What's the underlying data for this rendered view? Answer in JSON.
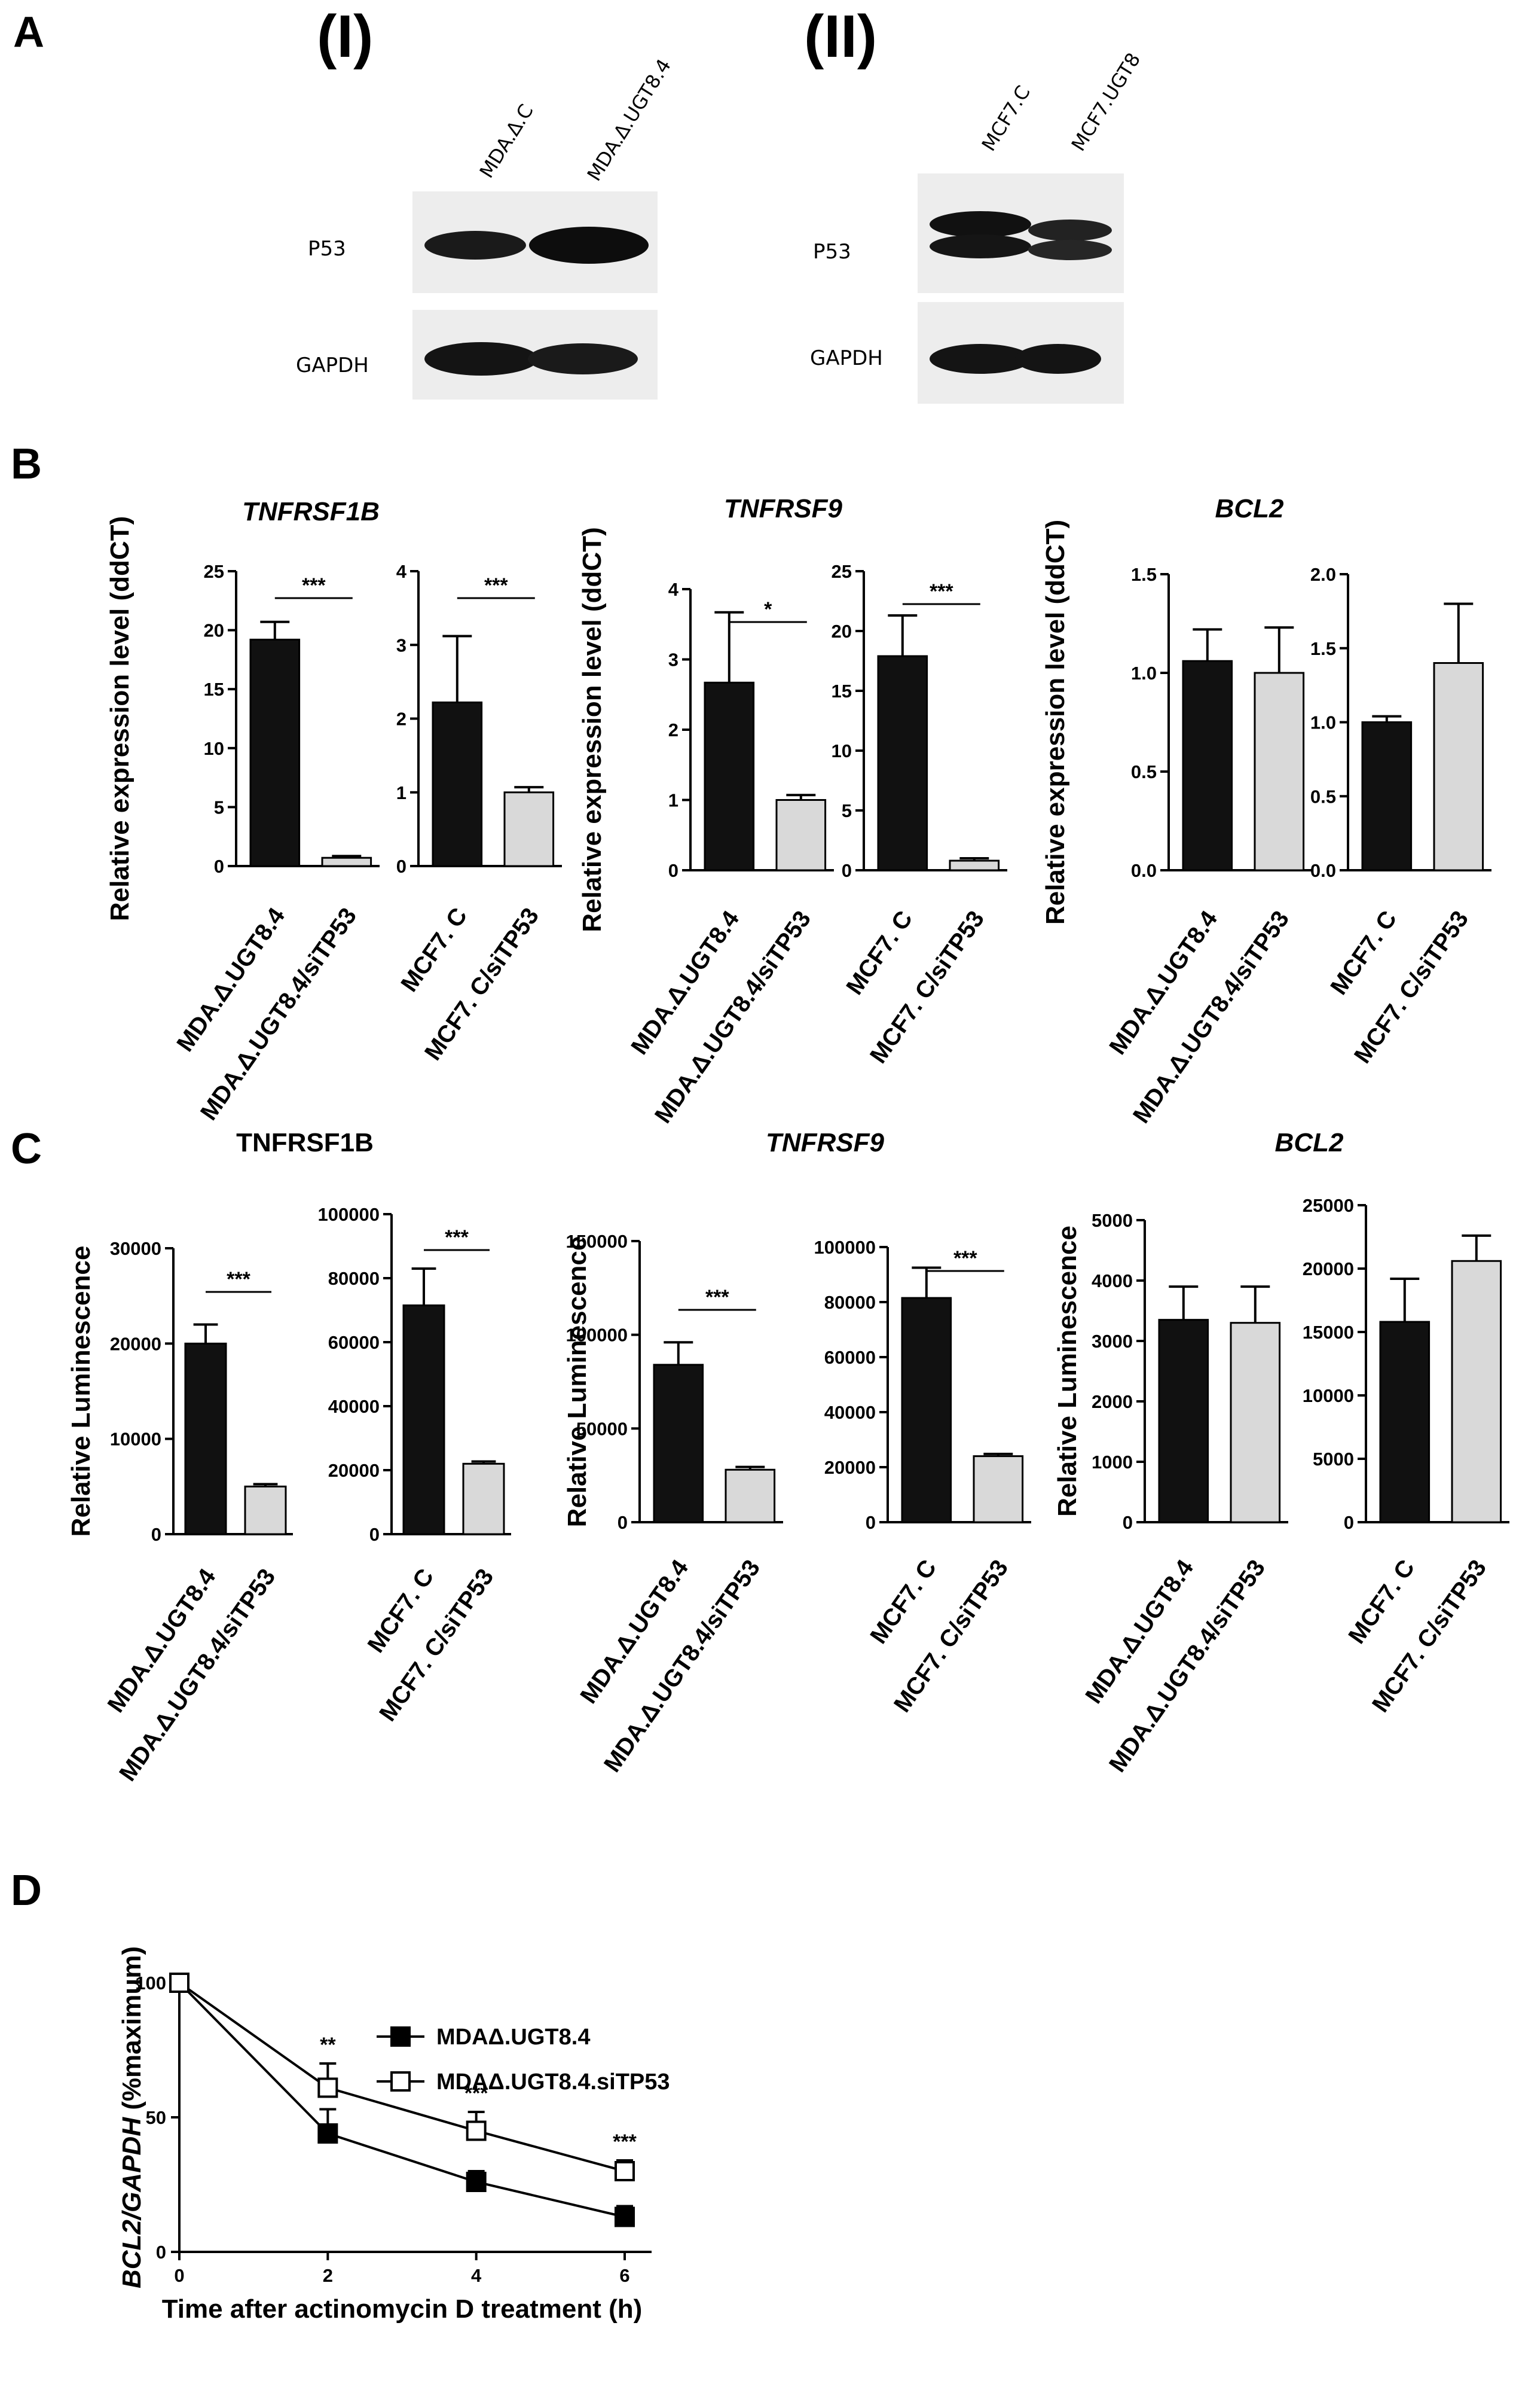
{
  "panel_letters": {
    "A": "A",
    "B": "B",
    "C": "C",
    "D": "D"
  },
  "blots": {
    "I": {
      "roman": "(I)",
      "lanes": [
        "MDA.Δ.C",
        "MDA.Δ.UGT8.4"
      ],
      "bands": [
        {
          "label": "P53",
          "intensity": [
            0.75,
            1.0
          ]
        },
        {
          "label": "GAPDH",
          "intensity": [
            0.9,
            0.85
          ]
        }
      ]
    },
    "II": {
      "roman": "(II)",
      "lanes": [
        "MCF7.C",
        "MCF7.UGT8"
      ],
      "bands": [
        {
          "label": "P53",
          "intensity": [
            1.0,
            0.85
          ]
        },
        {
          "label": "GAPDH",
          "intensity": [
            0.9,
            0.9
          ]
        }
      ]
    }
  },
  "chart_data": [
    {
      "id": "B1",
      "type": "bar",
      "title": "TNFRSF1B",
      "title_italic": true,
      "ylabel": "Relative expression level (ddCT)",
      "categories": [
        "MDA.Δ.UGT8.4",
        "MDA.Δ.UGT8.4/siTP53"
      ],
      "values": [
        19.2,
        0.7
      ],
      "errors": [
        1.5,
        0.15
      ],
      "ylim": [
        0,
        25
      ],
      "yticks": [
        0,
        5,
        10,
        15,
        20,
        25
      ],
      "colors": [
        "#111111",
        "#d9d9d9"
      ],
      "sig": "***"
    },
    {
      "id": "B2",
      "type": "bar",
      "title": "",
      "ylabel": "",
      "categories": [
        "MCF7. C",
        "MCF7. C/siTP53"
      ],
      "values": [
        2.22,
        1.0
      ],
      "errors": [
        0.9,
        0.07
      ],
      "ylim": [
        0,
        4
      ],
      "yticks": [
        0,
        1,
        2,
        3,
        4
      ],
      "colors": [
        "#111111",
        "#d9d9d9"
      ],
      "sig": "***"
    },
    {
      "id": "B3",
      "type": "bar",
      "title": "TNFRSF9",
      "title_italic": true,
      "ylabel": "Relative expression level (ddCT)",
      "categories": [
        "MDA.Δ.UGT8.4",
        "MDA.Δ.UGT8.4/siTP53"
      ],
      "values": [
        2.67,
        1.0
      ],
      "errors": [
        1.0,
        0.07
      ],
      "ylim": [
        0,
        4
      ],
      "yticks": [
        0,
        1,
        2,
        3,
        4
      ],
      "colors": [
        "#111111",
        "#d9d9d9"
      ],
      "sig": "*"
    },
    {
      "id": "B4",
      "type": "bar",
      "title": "",
      "ylabel": "",
      "categories": [
        "MCF7. C",
        "MCF7. C/siTP53"
      ],
      "values": [
        17.9,
        0.8
      ],
      "errors": [
        3.4,
        0.2
      ],
      "ylim": [
        0,
        25
      ],
      "yticks": [
        0,
        5,
        10,
        15,
        20,
        25
      ],
      "colors": [
        "#111111",
        "#d9d9d9"
      ],
      "sig": "***"
    },
    {
      "id": "B5",
      "type": "bar",
      "title": "BCL2",
      "title_italic": true,
      "ylabel": "Relative expression level (ddCT)",
      "categories": [
        "MDA.Δ.UGT8.4",
        "MDA.Δ.UGT8.4/siTP53"
      ],
      "values": [
        1.06,
        1.0
      ],
      "errors": [
        0.16,
        0.23
      ],
      "ylim": [
        0,
        1.5
      ],
      "yticks": [
        "0.0",
        "0.5",
        "1.0",
        "1.5"
      ],
      "colors": [
        "#111111",
        "#d9d9d9"
      ],
      "sig": ""
    },
    {
      "id": "B6",
      "type": "bar",
      "title": "",
      "ylabel": "",
      "categories": [
        "MCF7. C",
        "MCF7. C/siTP53"
      ],
      "values": [
        1.0,
        1.4
      ],
      "errors": [
        0.04,
        0.4
      ],
      "ylim": [
        0,
        2.0
      ],
      "yticks": [
        "0.0",
        "0.5",
        "1.0",
        "1.5",
        "2.0"
      ],
      "colors": [
        "#111111",
        "#d9d9d9"
      ],
      "sig": ""
    },
    {
      "id": "C1",
      "type": "bar",
      "title": "TNFRSF1B",
      "title_italic": false,
      "ylabel": "Relative Luminescence",
      "categories": [
        "MDA.Δ.UGT8.4",
        "MDA.Δ.UGT8.4/siTP53"
      ],
      "values": [
        20000,
        5000
      ],
      "errors": [
        2000,
        250
      ],
      "ylim": [
        0,
        30000
      ],
      "yticks": [
        0,
        10000,
        20000,
        30000
      ],
      "colors": [
        "#111111",
        "#d9d9d9"
      ],
      "sig": "***"
    },
    {
      "id": "C2",
      "type": "bar",
      "title": "",
      "ylabel": "",
      "categories": [
        "MCF7. C",
        "MCF7. C/siTP53"
      ],
      "values": [
        71500,
        22000
      ],
      "errors": [
        11500,
        700
      ],
      "ylim": [
        0,
        100000
      ],
      "yticks": [
        0,
        20000,
        40000,
        60000,
        80000,
        100000
      ],
      "colors": [
        "#111111",
        "#d9d9d9"
      ],
      "sig": "***"
    },
    {
      "id": "C3",
      "type": "bar",
      "title": "TNFRSF9",
      "title_italic": true,
      "ylabel": "Relative Luminescence",
      "categories": [
        "MDA.Δ.UGT8.4",
        "MDA.Δ.UGT8.4/siTP53"
      ],
      "values": [
        84000,
        28000
      ],
      "errors": [
        12000,
        1500
      ],
      "ylim": [
        0,
        150000
      ],
      "yticks": [
        0,
        50000,
        100000,
        150000
      ],
      "colors": [
        "#111111",
        "#d9d9d9"
      ],
      "sig": "***"
    },
    {
      "id": "C4",
      "type": "bar",
      "title": "",
      "ylabel": "",
      "categories": [
        "MCF7. C",
        "MCF7. C/siTP53"
      ],
      "values": [
        81500,
        24000
      ],
      "errors": [
        11000,
        800
      ],
      "ylim": [
        0,
        100000
      ],
      "yticks": [
        0,
        20000,
        40000,
        60000,
        80000,
        100000
      ],
      "colors": [
        "#111111",
        "#d9d9d9"
      ],
      "sig": "***"
    },
    {
      "id": "C5",
      "type": "bar",
      "title": "",
      "ylabel": "Relative Luminescence",
      "categories": [
        "MDA.Δ.UGT8.4",
        "MDA.Δ.UGT8.4/siTP53"
      ],
      "values": [
        3350,
        3300
      ],
      "errors": [
        550,
        600
      ],
      "ylim": [
        0,
        5000
      ],
      "yticks": [
        0,
        1000,
        2000,
        3000,
        4000,
        5000
      ],
      "colors": [
        "#111111",
        "#d9d9d9"
      ],
      "sig": ""
    },
    {
      "id": "C6",
      "type": "bar",
      "title": "BCL2",
      "title_italic": true,
      "ylabel": "",
      "categories": [
        "MCF7. C",
        "MCF7. C/siTP53"
      ],
      "values": [
        15800,
        20600
      ],
      "errors": [
        3400,
        2000
      ],
      "ylim": [
        0,
        25000
      ],
      "yticks": [
        0,
        5000,
        10000,
        15000,
        20000,
        25000
      ],
      "colors": [
        "#111111",
        "#d9d9d9"
      ],
      "sig": ""
    },
    {
      "id": "D",
      "type": "line",
      "title": "",
      "ylabel_italic_part": "BCL2/GAPDH",
      "ylabel_rest": " (%maximum)",
      "xlabel": "Time after actinomycin D treatment (h)",
      "x": [
        0,
        2,
        4,
        6
      ],
      "xticks": [
        0,
        2,
        4,
        6
      ],
      "yticks": [
        0,
        50,
        100
      ],
      "xlim": [
        0,
        6.9
      ],
      "ylim": [
        0,
        100
      ],
      "series": [
        {
          "name": "MDAΔ.UGT8.4",
          "marker": "filled-square",
          "values": [
            100,
            44,
            26,
            13
          ],
          "errors": [
            0,
            9,
            4,
            4
          ]
        },
        {
          "name": "MDAΔ.UGT8.4.siTP53",
          "marker": "open-square",
          "values": [
            100,
            61,
            45,
            30
          ],
          "errors": [
            0,
            9,
            7,
            4
          ]
        }
      ],
      "sig_labels": [
        {
          "x": 2,
          "text": "**"
        },
        {
          "x": 4,
          "text": "***"
        },
        {
          "x": 6,
          "text": "***"
        }
      ]
    }
  ]
}
